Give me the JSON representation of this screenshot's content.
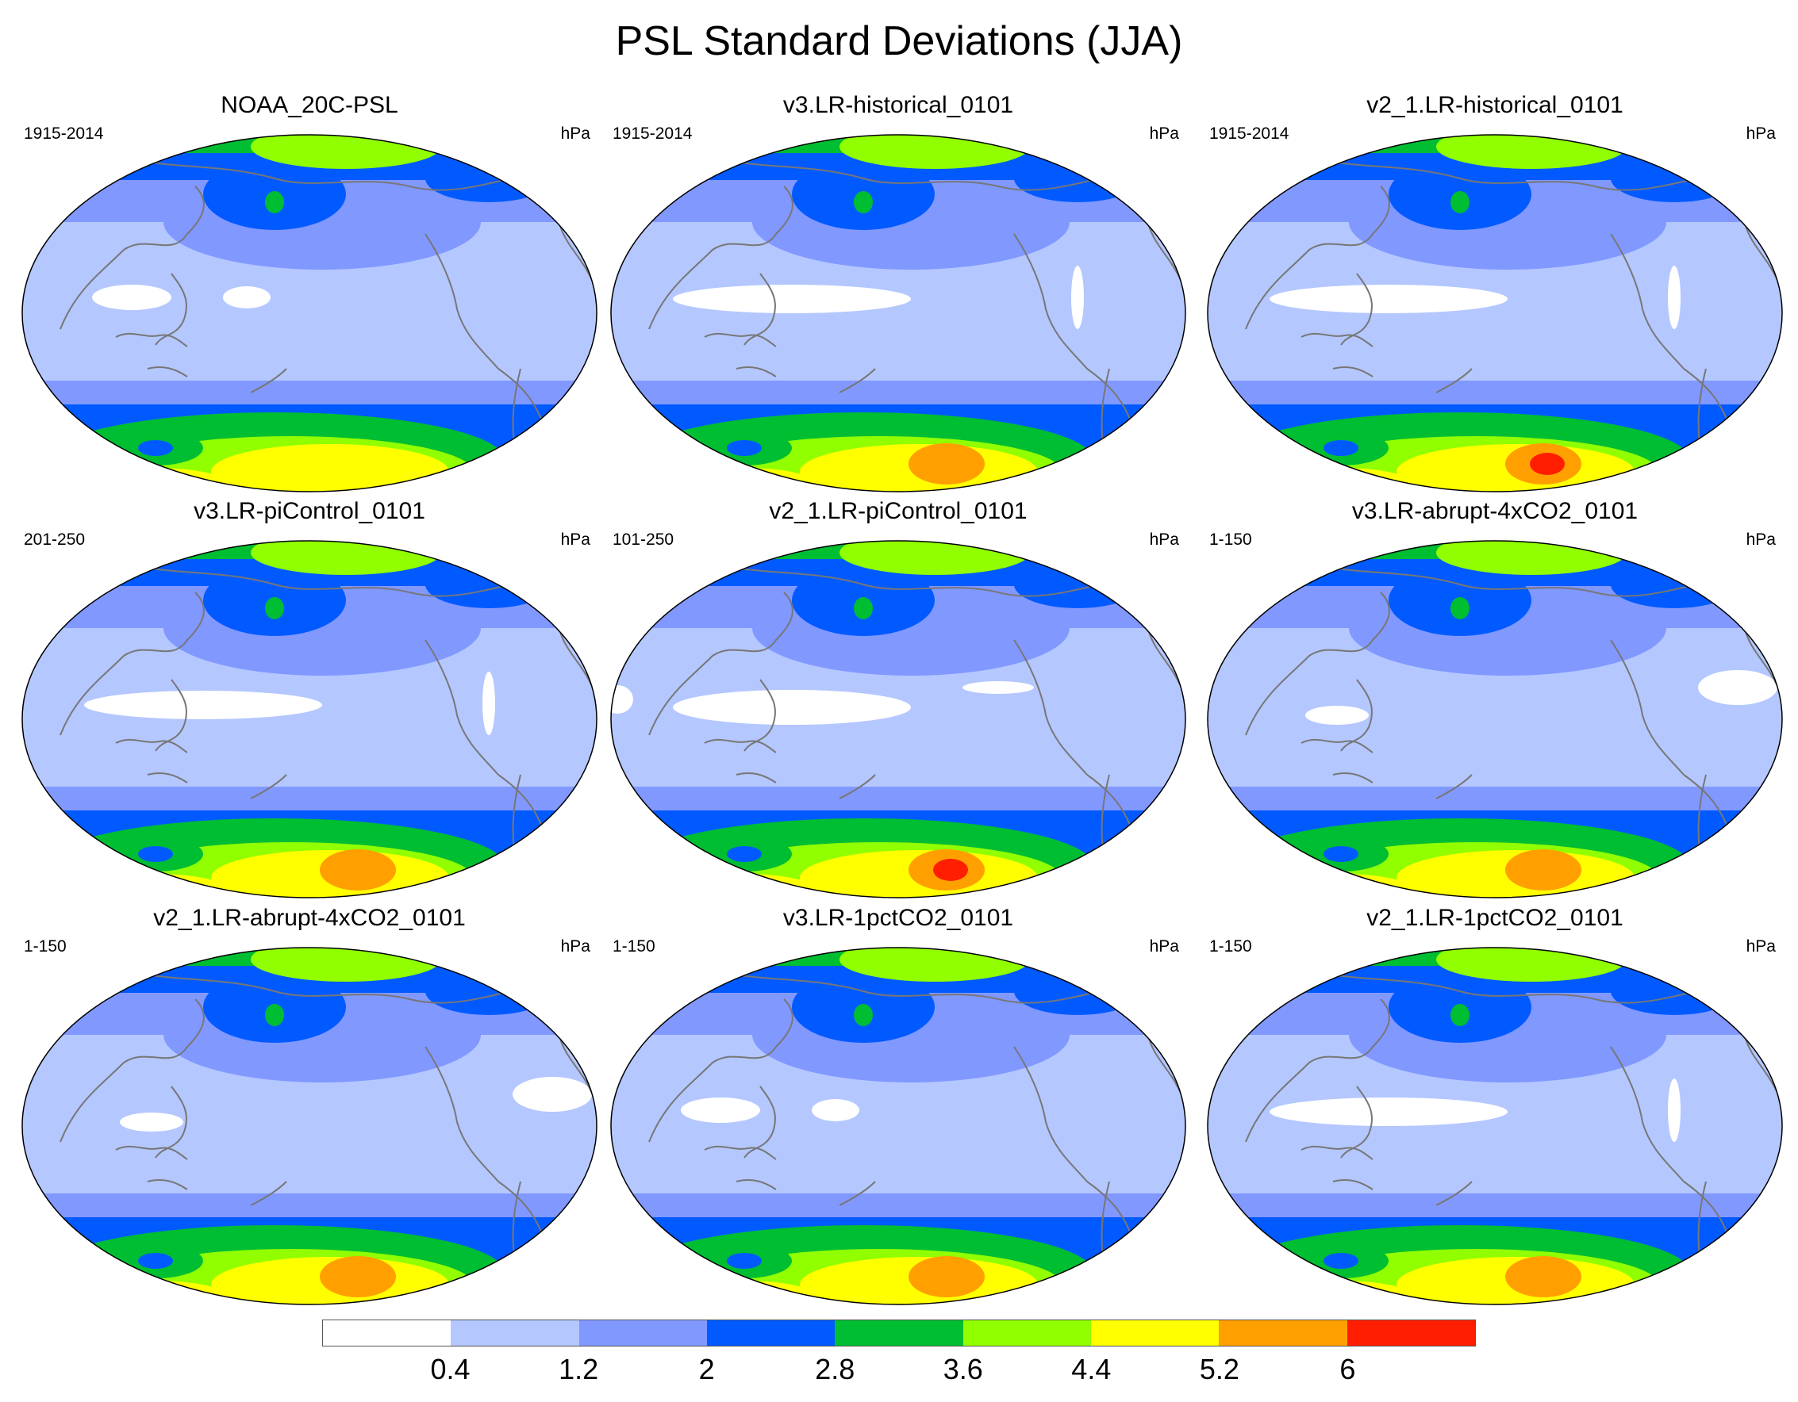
{
  "title": "PSL Standard Deviations (JJA)",
  "panels": [
    {
      "title": "NOAA_20C-PSL",
      "period": "1915-2014",
      "unit": "hPa",
      "south_max": 5.2,
      "tropics_zero": "weak"
    },
    {
      "title": "v3.LR-historical_0101",
      "period": "1915-2014",
      "unit": "hPa",
      "south_max": 6,
      "tropics_zero": "medium"
    },
    {
      "title": "v2_1.LR-historical_0101",
      "period": "1915-2014",
      "unit": "hPa",
      "south_max": 7,
      "tropics_zero": "medium"
    },
    {
      "title": "v3.LR-piControl_0101",
      "period": "201-250",
      "unit": "hPa",
      "south_max": 6,
      "tropics_zero": "medium"
    },
    {
      "title": "v2_1.LR-piControl_0101",
      "period": "101-250",
      "unit": "hPa",
      "south_max": 7,
      "tropics_zero": "strong"
    },
    {
      "title": "v3.LR-abrupt-4xCO2_0101",
      "period": "1-150",
      "unit": "hPa",
      "south_max": 6,
      "tropics_zero": "atlantic"
    },
    {
      "title": "v2_1.LR-abrupt-4xCO2_0101",
      "period": "1-150",
      "unit": "hPa",
      "south_max": 6,
      "tropics_zero": "atlantic"
    },
    {
      "title": "v3.LR-1pctCO2_0101",
      "period": "1-150",
      "unit": "hPa",
      "south_max": 6,
      "tropics_zero": "weak"
    },
    {
      "title": "v2_1.LR-1pctCO2_0101",
      "period": "1-150",
      "unit": "hPa",
      "south_max": 6,
      "tropics_zero": "medium"
    }
  ],
  "colorbar": {
    "colors": [
      "#ffffff",
      "#b4c7ff",
      "#8198ff",
      "#005aff",
      "#00be32",
      "#91ff00",
      "#ffff00",
      "#ffa000",
      "#ff1e00"
    ],
    "labels": [
      "0.4",
      "1.2",
      "2",
      "2.8",
      "3.6",
      "4.4",
      "5.2",
      "6"
    ]
  }
}
